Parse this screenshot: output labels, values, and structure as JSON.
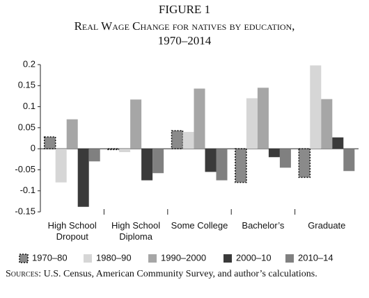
{
  "chart_data": {
    "type": "bar",
    "title": "FIGURE 1",
    "subtitle": "Real Wage Change for natives by education,",
    "subtitle_2": "1970–2014",
    "categories": [
      "High School Dropout",
      "High School Diploma",
      "Some College",
      "Bachelor’s",
      "Graduate"
    ],
    "series": [
      {
        "name": "1970–80",
        "color": "#8a8a8a",
        "border": "dotted",
        "values": [
          0.028,
          -0.002,
          0.043,
          -0.08,
          -0.068
        ]
      },
      {
        "name": "1980–90",
        "color": "#d6d6d6",
        "values": [
          -0.08,
          -0.008,
          0.04,
          0.12,
          0.198
        ]
      },
      {
        "name": "1990–2000",
        "color": "#a6a6a6",
        "values": [
          0.07,
          0.117,
          0.143,
          0.145,
          0.118
        ]
      },
      {
        "name": "2000–10",
        "color": "#3a3a3a",
        "values": [
          -0.138,
          -0.075,
          -0.055,
          -0.02,
          0.027
        ]
      },
      {
        "name": "2010–14",
        "color": "#808080",
        "values": [
          -0.03,
          -0.058,
          -0.075,
          -0.045,
          -0.053
        ]
      }
    ],
    "ylim": [
      -0.15,
      0.2
    ],
    "yticks": [
      -0.15,
      -0.1,
      -0.05,
      0,
      0.05,
      0.1,
      0.15,
      0.2
    ],
    "grid": false,
    "legend": "bottom",
    "source_label": "Sources:",
    "source_text": "U.S. Census, American Community Survey, and author’s calculations."
  }
}
